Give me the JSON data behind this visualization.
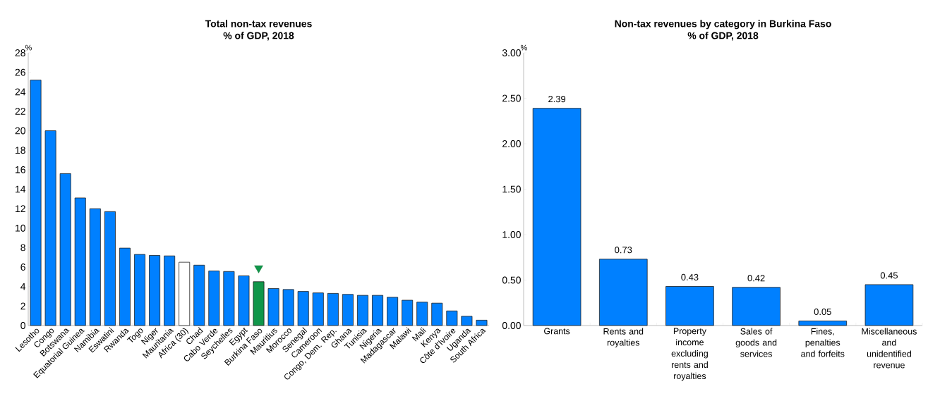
{
  "chart_data": [
    {
      "type": "bar",
      "title": "Total non-tax revenues",
      "subtitle": "% of GDP, 2018",
      "ylabel": "%",
      "categories": [
        "Lesotho",
        "Congo",
        "Botswana",
        "Equatorial Guinea",
        "Namibia",
        "Eswatini",
        "Rwanda",
        "Togo",
        "Niger",
        "Mauritania",
        "Africa (30)",
        "Chad",
        "Cabo Verde",
        "Seychelles",
        "Egypt",
        "Burkina Faso",
        "Mauritius",
        "Morocco",
        "Senegal",
        "Cameroon",
        "Congo, Dem. Rep.",
        "Ghana",
        "Tunisia",
        "Nigeria",
        "Madagascar",
        "Malawi",
        "Mali",
        "Kenya",
        "Côte d'Ivoire",
        "Uganda",
        "South Africa"
      ],
      "values": [
        25.2,
        20.0,
        15.6,
        13.1,
        12.0,
        11.7,
        7.95,
        7.3,
        7.2,
        7.15,
        6.5,
        6.2,
        5.6,
        5.55,
        5.1,
        4.5,
        3.8,
        3.7,
        3.5,
        3.35,
        3.3,
        3.2,
        3.1,
        3.1,
        2.9,
        2.6,
        2.4,
        2.3,
        1.5,
        0.95,
        0.55
      ],
      "colors": [
        "#0080ff",
        "#0080ff",
        "#0080ff",
        "#0080ff",
        "#0080ff",
        "#0080ff",
        "#0080ff",
        "#0080ff",
        "#0080ff",
        "#0080ff",
        "#ffffff",
        "#0080ff",
        "#0080ff",
        "#0080ff",
        "#0080ff",
        "#10964a",
        "#0080ff",
        "#0080ff",
        "#0080ff",
        "#0080ff",
        "#0080ff",
        "#0080ff",
        "#0080ff",
        "#0080ff",
        "#0080ff",
        "#0080ff",
        "#0080ff",
        "#0080ff",
        "#0080ff",
        "#0080ff",
        "#0080ff"
      ],
      "series": [
        {
          "type": "scatter",
          "x": [
            "Burkina Faso"
          ],
          "values": [
            5.9
          ],
          "color": "#10964a",
          "marker": "triangle"
        }
      ],
      "ylim": [
        0,
        28
      ],
      "yticks": [
        0,
        2,
        4,
        6,
        8,
        10,
        12,
        14,
        16,
        18,
        20,
        22,
        24,
        26,
        28
      ]
    },
    {
      "type": "bar",
      "title": "Non-tax revenues by category in Burkina Faso",
      "subtitle": "% of GDP, 2018",
      "ylabel": "%",
      "categories": [
        "Grants",
        "Rents and royalties",
        "Property income excluding rents and royalties",
        "Sales of goods and services",
        "Fines, penalties and forfeits",
        "Miscellaneous and unidentified revenue"
      ],
      "values": [
        2.39,
        0.73,
        0.43,
        0.42,
        0.05,
        0.45
      ],
      "color": "#0080ff",
      "data_labels": true,
      "ylim": [
        0,
        3
      ],
      "yticks": [
        {
          "value": 0,
          "label": "0.00"
        },
        {
          "value": 0.5,
          "label": "0.50"
        },
        {
          "value": 1,
          "label": "1.00"
        },
        {
          "value": 1.5,
          "label": "1.50"
        },
        {
          "value": 2,
          "label": "2.00"
        },
        {
          "value": 2.5,
          "label": "2.50"
        },
        {
          "value": 3,
          "label": "3.00"
        }
      ]
    }
  ]
}
